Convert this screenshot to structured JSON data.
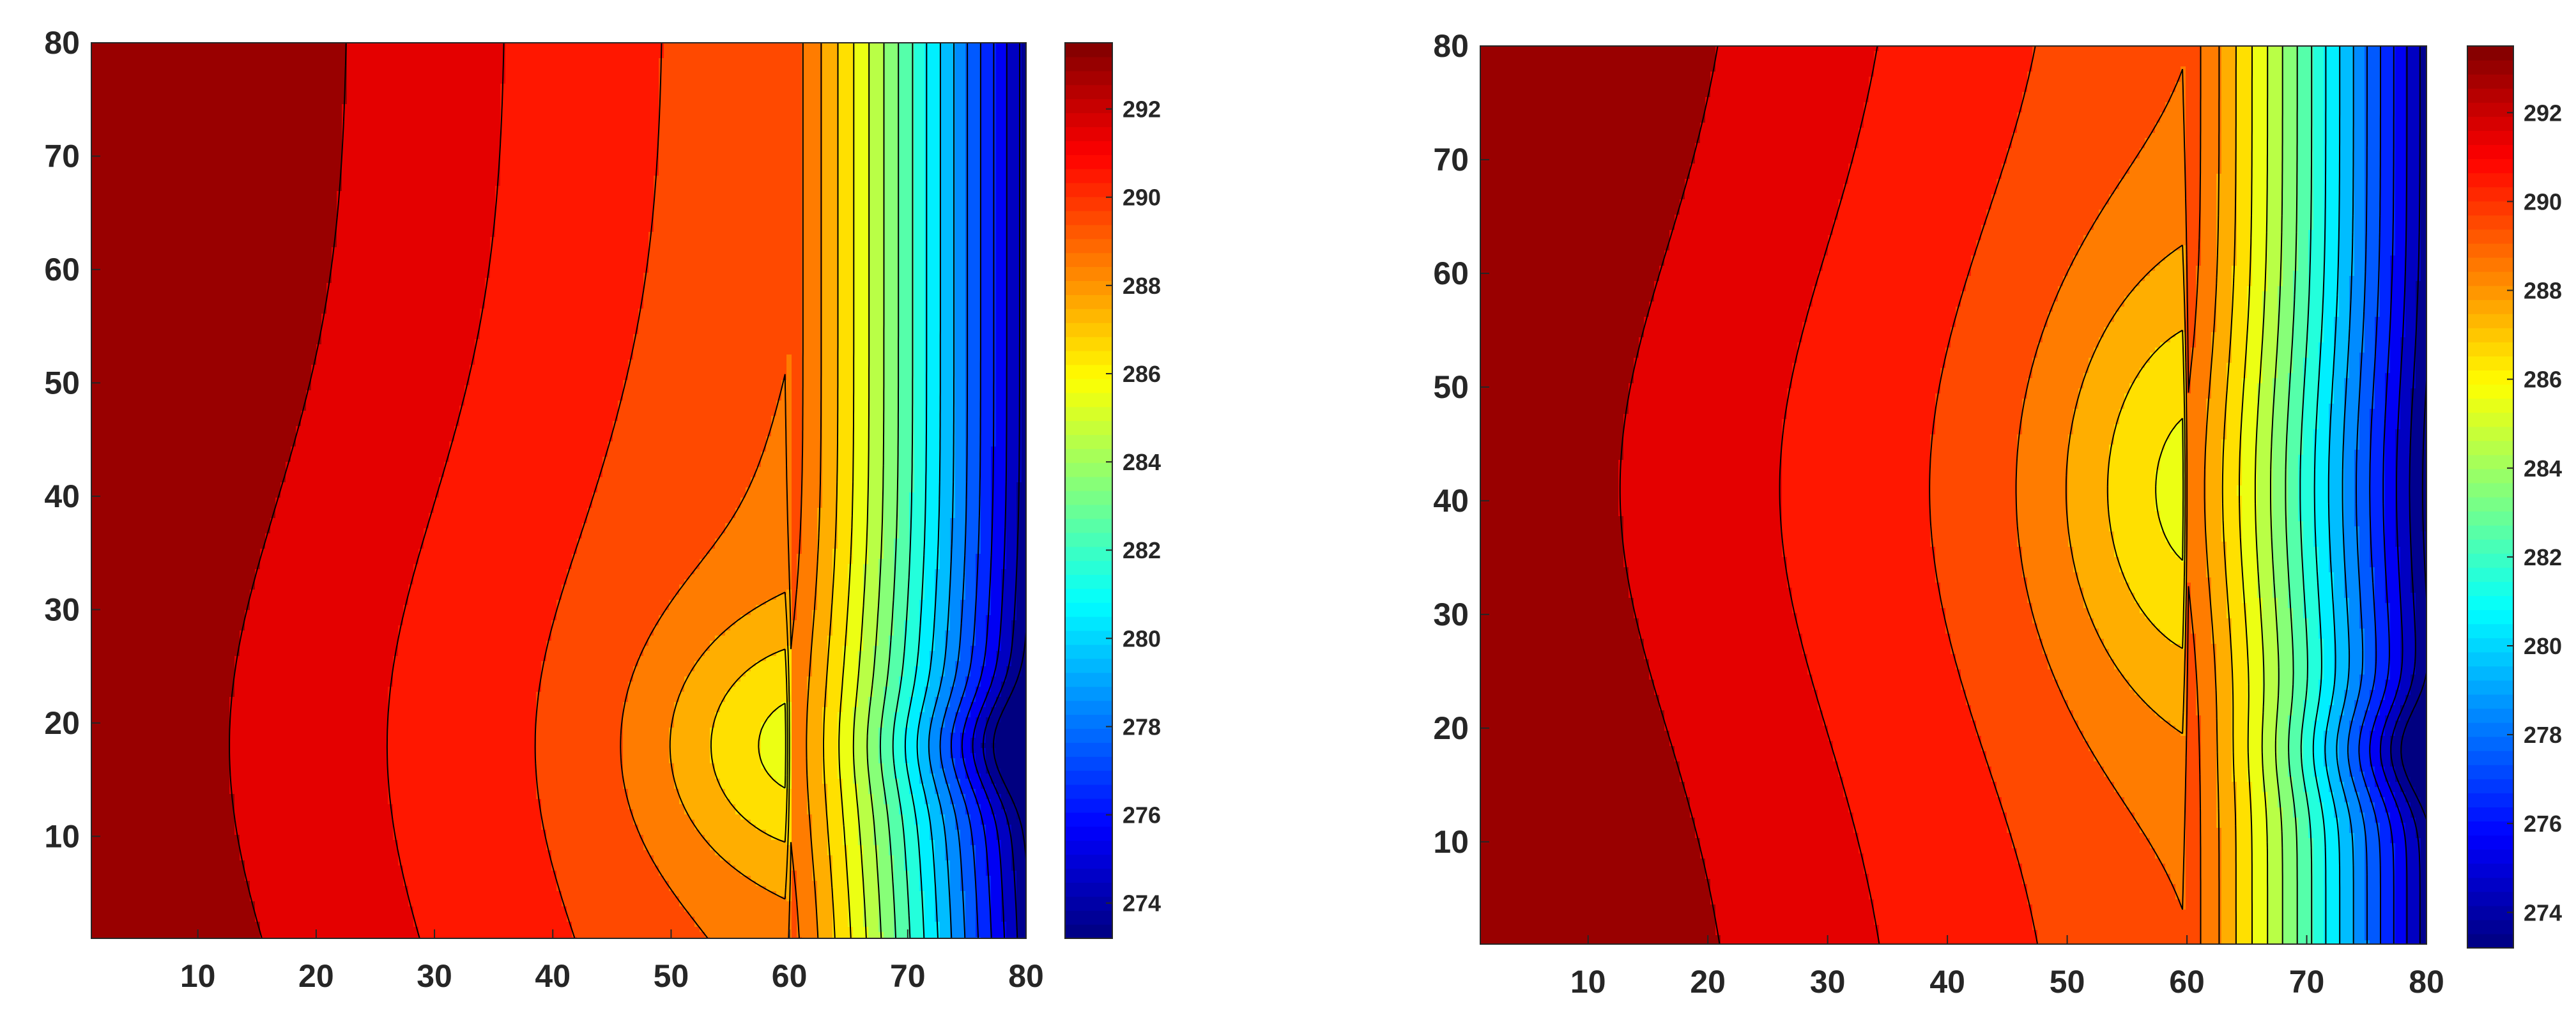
{
  "chart_data": [
    {
      "type": "heatmap",
      "subtype": "filled-contour",
      "title": "",
      "xlabel": "",
      "ylabel": "",
      "xlim": [
        1,
        80
      ],
      "ylim": [
        1,
        80
      ],
      "xticks": [
        10,
        20,
        30,
        40,
        50,
        60,
        70,
        80
      ],
      "yticks": [
        10,
        20,
        30,
        40,
        50,
        60,
        70,
        80
      ],
      "colorbar": {
        "clim": [
          273.2,
          293.5
        ],
        "ticks": [
          274,
          276,
          278,
          280,
          282,
          284,
          286,
          288,
          290,
          292
        ],
        "colormap": "jet"
      },
      "contour_levels": [
        272,
        273,
        274,
        275,
        276,
        277,
        278,
        279,
        280,
        281,
        282,
        283,
        284,
        285,
        286,
        287,
        288,
        289,
        290,
        291,
        292,
        294
      ],
      "field": {
        "description_free": true,
        "barrier_x": 60,
        "hot_center": {
          "x": 60,
          "y": 18,
          "sigma_y": 11
        },
        "cold_wall_x": 80,
        "cold_spot_y": 18
      },
      "grid": false,
      "legend": "none"
    },
    {
      "type": "heatmap",
      "subtype": "filled-contour",
      "title": "",
      "xlabel": "",
      "ylabel": "",
      "xlim": [
        1,
        80
      ],
      "ylim": [
        1,
        80
      ],
      "xticks": [
        10,
        20,
        30,
        40,
        50,
        60,
        70,
        80
      ],
      "yticks": [
        10,
        20,
        30,
        40,
        50,
        60,
        70,
        80
      ],
      "colorbar": {
        "clim": [
          273.2,
          293.5
        ],
        "ticks": [
          274,
          276,
          278,
          280,
          282,
          284,
          286,
          288,
          290,
          292
        ],
        "colormap": "jet"
      },
      "contour_levels": [
        272,
        273,
        274,
        275,
        276,
        277,
        278,
        279,
        280,
        281,
        282,
        283,
        284,
        285,
        286,
        287,
        288,
        289,
        290,
        291,
        292,
        294
      ],
      "field": {
        "barrier_x": 60,
        "hot_center": {
          "x": 60,
          "y": 41,
          "sigma_y": 19
        },
        "cold_wall_x": 80,
        "cold_spot_y": 18
      },
      "grid": false,
      "legend": "none"
    }
  ]
}
